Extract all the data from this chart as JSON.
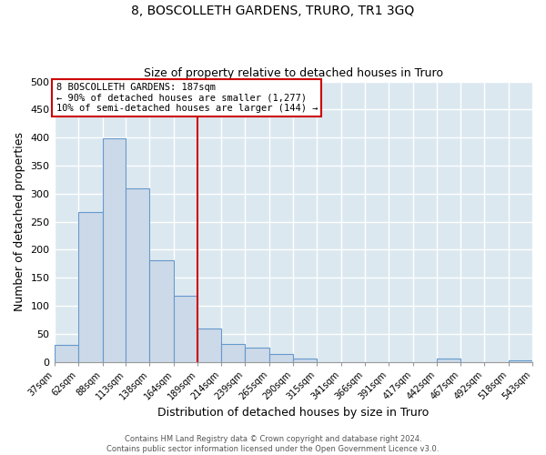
{
  "title": "8, BOSCOLLETH GARDENS, TRURO, TR1 3GQ",
  "subtitle": "Size of property relative to detached houses in Truro",
  "xlabel": "Distribution of detached houses by size in Truro",
  "ylabel": "Number of detached properties",
  "bar_color": "#ccd9e8",
  "bar_edge_color": "#6699cc",
  "background_color": "#dce8f0",
  "grid_color": "#ffffff",
  "bin_edges": [
    37,
    62,
    88,
    113,
    138,
    164,
    189,
    214,
    239,
    265,
    290,
    315,
    341,
    366,
    391,
    417,
    442,
    467,
    492,
    518,
    543
  ],
  "bin_heights": [
    30,
    267,
    398,
    310,
    181,
    117,
    59,
    32,
    25,
    14,
    6,
    0,
    0,
    0,
    0,
    0,
    5,
    0,
    0,
    3
  ],
  "vline_x": 189,
  "vline_color": "#cc0000",
  "ylim": [
    0,
    500
  ],
  "annotation_title": "8 BOSCOLLETH GARDENS: 187sqm",
  "annotation_line1": "← 90% of detached houses are smaller (1,277)",
  "annotation_line2": "10% of semi-detached houses are larger (144) →",
  "annotation_box_color": "#ffffff",
  "annotation_box_edge": "#cc0000",
  "footer_line1": "Contains HM Land Registry data © Crown copyright and database right 2024.",
  "footer_line2": "Contains public sector information licensed under the Open Government Licence v3.0.",
  "tick_labels": [
    "37sqm",
    "62sqm",
    "88sqm",
    "113sqm",
    "138sqm",
    "164sqm",
    "189sqm",
    "214sqm",
    "239sqm",
    "265sqm",
    "290sqm",
    "315sqm",
    "341sqm",
    "366sqm",
    "391sqm",
    "417sqm",
    "442sqm",
    "467sqm",
    "492sqm",
    "518sqm",
    "543sqm"
  ],
  "fig_bg": "#ffffff"
}
